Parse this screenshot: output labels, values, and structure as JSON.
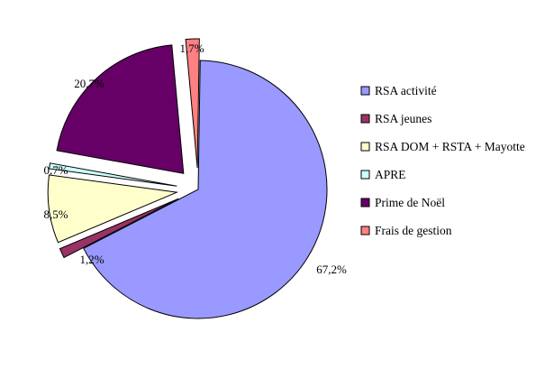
{
  "chart_data": {
    "type": "pie",
    "exploded": true,
    "legend_position": "right",
    "slices": [
      {
        "label": "RSA activité",
        "value": 67.2,
        "display": "67,2%",
        "color": "#9999ff"
      },
      {
        "label": "RSA jeunes",
        "value": 1.2,
        "display": "1,2%",
        "color": "#993366"
      },
      {
        "label": "RSA DOM + RSTA + Mayotte",
        "value": 8.5,
        "display": "8,5%",
        "color": "#ffffcc"
      },
      {
        "label": "APRE",
        "value": 0.7,
        "display": "0,7%",
        "color": "#ccffff"
      },
      {
        "label": "Prime de Noël",
        "value": 20.7,
        "display": "20,7%",
        "color": "#660066"
      },
      {
        "label": "Frais de gestion",
        "value": 1.7,
        "display": "1,7%",
        "color": "#ff8080"
      }
    ]
  }
}
